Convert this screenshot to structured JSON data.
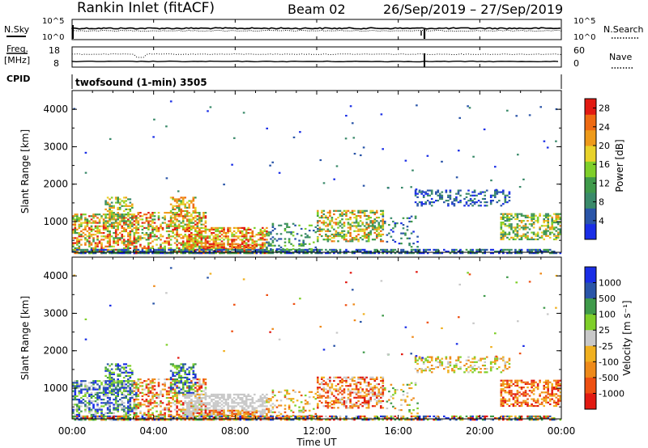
{
  "header": {
    "station": "Rankin Inlet (fitACF)",
    "beam_label": "Beam 02",
    "date_range": "26/Sep/2019 – 27/Sep/2019"
  },
  "chart_data": [
    {
      "type": "line",
      "panel": "noise",
      "left_label": "N.Sky",
      "right_label": "N.Search",
      "left_ticks": [
        "10^5",
        "10^0"
      ],
      "right_ticks": [
        "10^5",
        "10^0"
      ]
    },
    {
      "type": "line",
      "panel": "frequency",
      "left_label_1": "Freq.",
      "left_label_2": "[MHz]",
      "right_label": "Nave",
      "left_ticks": [
        "18",
        "8"
      ],
      "right_ticks": [
        "60",
        "0"
      ]
    },
    {
      "type": "heatmap",
      "panel": "power",
      "cpid_label": "CPID",
      "mode_label": "twofsound (1-min) 3505",
      "ylabel": "Slant Range [km]",
      "ylim": [
        180,
        4500
      ],
      "yticks": [
        "1000",
        "2000",
        "3000",
        "4000"
      ],
      "colorbar_label": "Power [dB]",
      "colorbar_ticks": [
        "4",
        "8",
        "12",
        "16",
        "20",
        "24",
        "28"
      ],
      "colorbar_range": [
        0,
        30
      ]
    },
    {
      "type": "heatmap",
      "panel": "velocity",
      "ylabel": "Slant Range [km]",
      "ylim": [
        180,
        4500
      ],
      "yticks": [
        "1000",
        "2000",
        "3000",
        "4000"
      ],
      "colorbar_label": "Velocity [m s⁻¹]",
      "colorbar_ticks": [
        "1000",
        "500",
        "100",
        "25",
        "-25",
        "-100",
        "-500",
        "-1000"
      ],
      "x_tick_labels": [
        "00:00",
        "04:00",
        "08:00",
        "12:00",
        "16:00",
        "20:00",
        "00:00"
      ],
      "xlabel": "Time UT",
      "xlim_hours": [
        0,
        24
      ]
    }
  ],
  "colors": {
    "power_scale": [
      "#1a2ee6",
      "#2a55a8",
      "#3a8a6a",
      "#3f9a4a",
      "#7fcf2a",
      "#e8d22a",
      "#ee9a1a",
      "#ee6a12",
      "#e21a12"
    ],
    "velocity_scale": [
      "#1a2ee6",
      "#2a55a8",
      "#3f9a4a",
      "#7fcf2a",
      "#c8c8c8",
      "#f0b020",
      "#ee8a1a",
      "#ee5012",
      "#e21a12"
    ]
  }
}
